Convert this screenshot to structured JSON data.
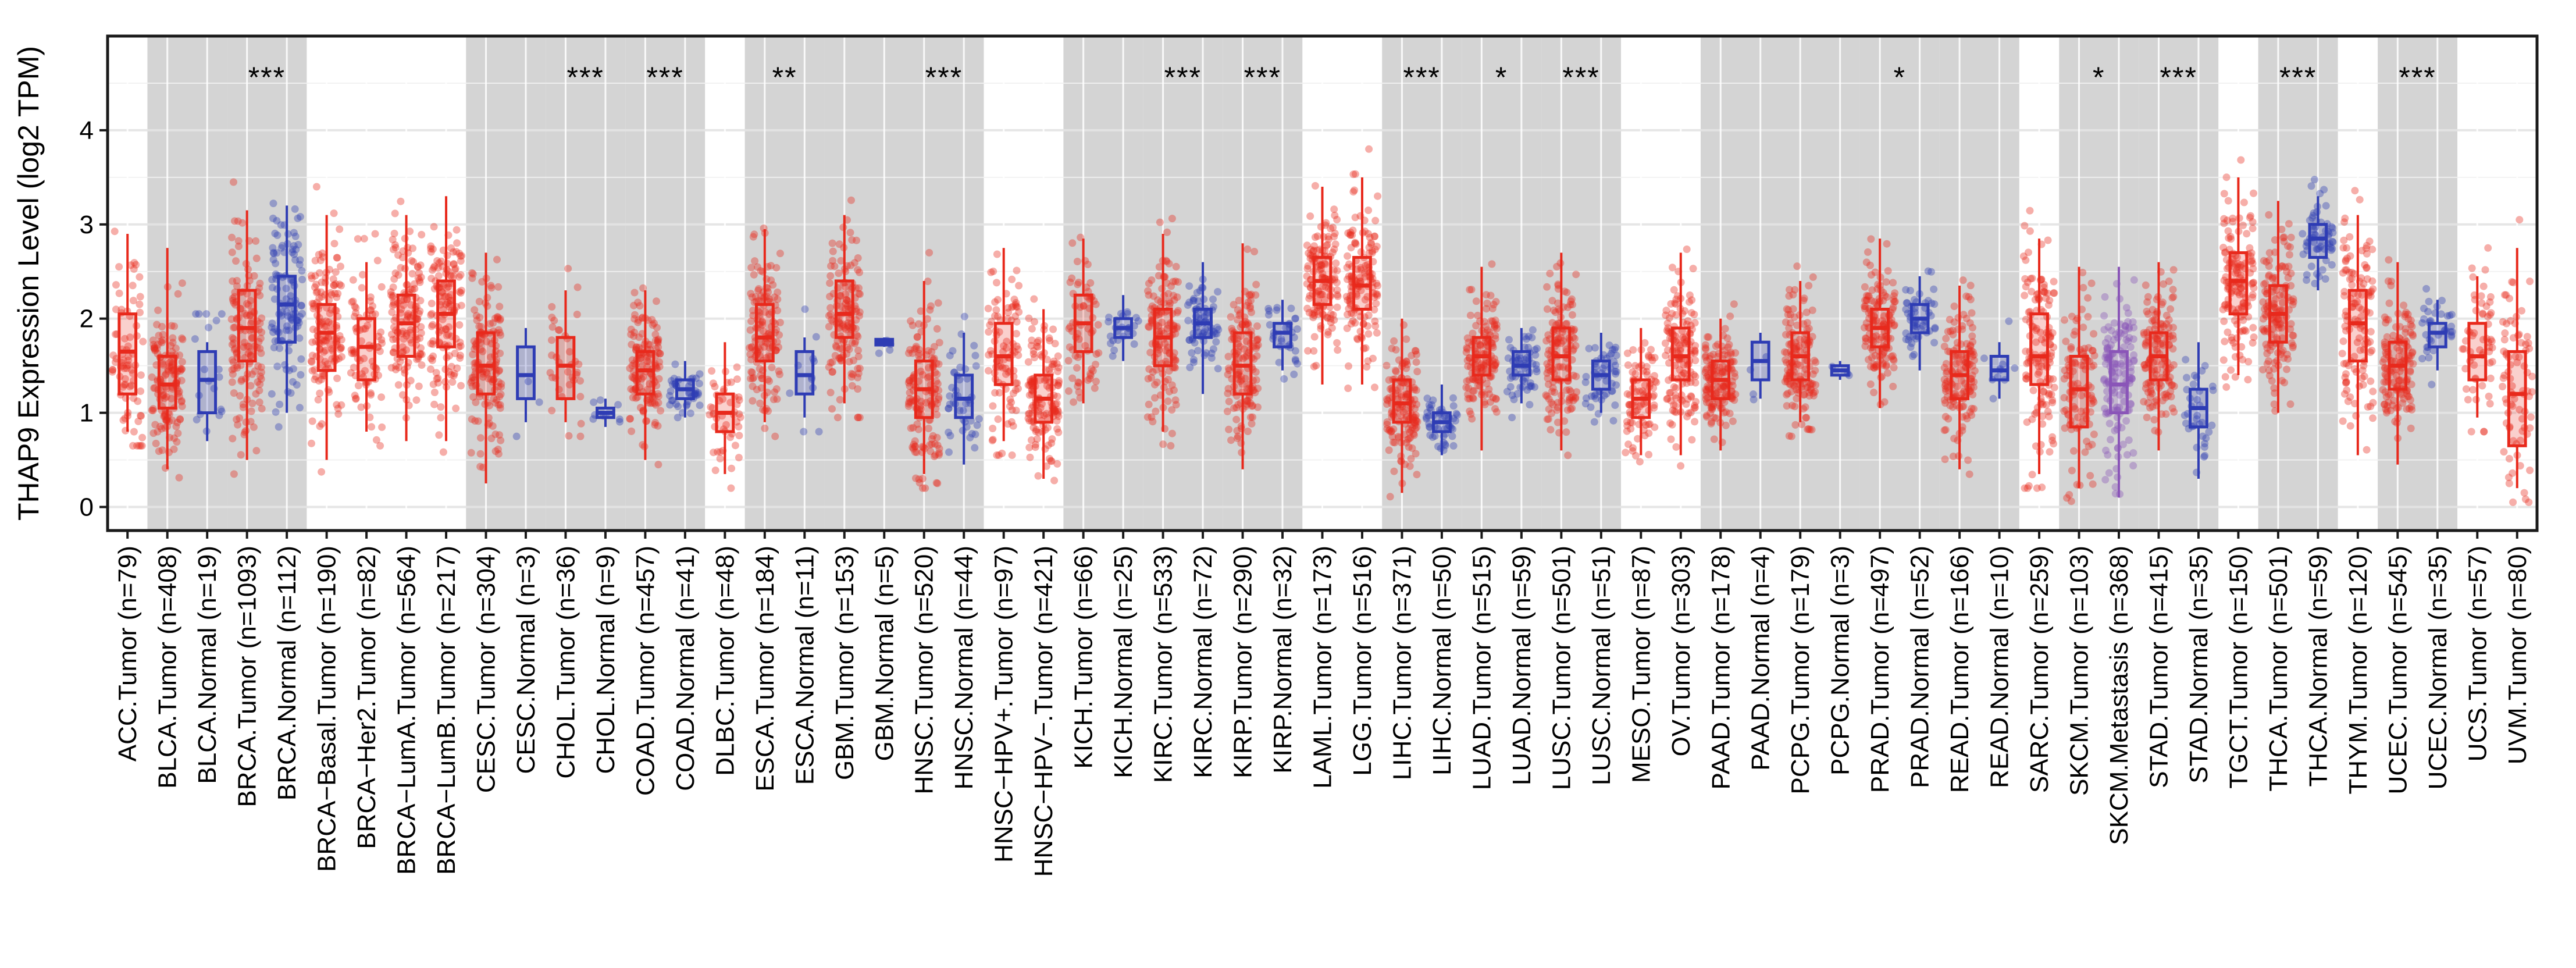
{
  "colors": {
    "tumor": "#e8291c",
    "normal": "#2e3cb4",
    "metastasis": "#8a55b8",
    "band": "#d4d4d4",
    "gridline": "#ebebeb"
  },
  "chart_data": {
    "type": "box",
    "xlabel": "",
    "ylabel": "THAP9 Expression Level (log2 TPM)",
    "ylim": [
      -0.25,
      5.0
    ],
    "yticks": [
      "0",
      "1",
      "2",
      "3",
      "4"
    ],
    "grid": true,
    "legend": "none",
    "shaded_pairs": [
      "BLCA",
      "BRCA",
      "CESC",
      "CHOL",
      "COAD",
      "ESCA",
      "GBM",
      "HNSC",
      "KICH",
      "KIRC",
      "KIRP",
      "LIHC",
      "LUAD",
      "LUSC",
      "PAAD",
      "PCPG",
      "PRAD",
      "READ",
      "SKCM",
      "STAD",
      "THCA",
      "UCEC"
    ],
    "significance": [
      {
        "group": "BRCA",
        "label": "***"
      },
      {
        "group": "CHOL",
        "label": "***"
      },
      {
        "group": "COAD",
        "label": "***"
      },
      {
        "group": "ESCA",
        "label": "**"
      },
      {
        "group": "HNSC",
        "label": "***"
      },
      {
        "group": "KIRC",
        "label": "***"
      },
      {
        "group": "KIRP",
        "label": "***"
      },
      {
        "group": "LIHC",
        "label": "***"
      },
      {
        "group": "LUAD",
        "label": "*"
      },
      {
        "group": "LUSC",
        "label": "***"
      },
      {
        "group": "PRAD",
        "label": "*"
      },
      {
        "group": "SKCM",
        "label": "*"
      },
      {
        "group": "STAD",
        "label": "***"
      },
      {
        "group": "THCA",
        "label": "***"
      },
      {
        "group": "UCEC",
        "label": "***"
      }
    ],
    "series": [
      {
        "label": "ACC.Tumor (n=79)",
        "type": "tumor",
        "group": "ACC",
        "min": 0.8,
        "q1": 1.2,
        "median": 1.65,
        "q3": 2.05,
        "max": 2.9
      },
      {
        "label": "BLCA.Tumor (n=408)",
        "type": "tumor",
        "group": "BLCA",
        "min": 0.4,
        "q1": 1.05,
        "median": 1.3,
        "q3": 1.6,
        "max": 2.75
      },
      {
        "label": "BLCA.Normal (n=19)",
        "type": "normal",
        "group": "BLCA",
        "min": 0.7,
        "q1": 1.0,
        "median": 1.35,
        "q3": 1.65,
        "max": 1.75
      },
      {
        "label": "BRCA.Tumor (n=1093)",
        "type": "tumor",
        "group": "BRCA",
        "min": 0.5,
        "q1": 1.55,
        "median": 1.9,
        "q3": 2.3,
        "max": 3.15
      },
      {
        "label": "BRCA.Normal (n=112)",
        "type": "normal",
        "group": "BRCA",
        "min": 1.0,
        "q1": 1.75,
        "median": 2.15,
        "q3": 2.45,
        "max": 3.2
      },
      {
        "label": "BRCA−Basal.Tumor (n=190)",
        "type": "tumor",
        "group": "BRCA−Basal",
        "min": 0.5,
        "q1": 1.45,
        "median": 1.85,
        "q3": 2.15,
        "max": 3.1
      },
      {
        "label": "BRCA−Her2.Tumor (n=82)",
        "type": "tumor",
        "group": "BRCA−Her2",
        "min": 0.8,
        "q1": 1.35,
        "median": 1.7,
        "q3": 2.0,
        "max": 2.6
      },
      {
        "label": "BRCA−LumA.Tumor (n=564)",
        "type": "tumor",
        "group": "BRCA−LumA",
        "min": 0.7,
        "q1": 1.6,
        "median": 1.95,
        "q3": 2.25,
        "max": 3.1
      },
      {
        "label": "BRCA−LumB.Tumor (n=217)",
        "type": "tumor",
        "group": "BRCA−LumB",
        "min": 0.7,
        "q1": 1.7,
        "median": 2.05,
        "q3": 2.4,
        "max": 3.3
      },
      {
        "label": "CESC.Tumor (n=304)",
        "type": "tumor",
        "group": "CESC",
        "min": 0.25,
        "q1": 1.2,
        "median": 1.5,
        "q3": 1.85,
        "max": 2.7
      },
      {
        "label": "CESC.Normal (n=3)",
        "type": "normal",
        "group": "CESC",
        "min": 0.9,
        "q1": 1.15,
        "median": 1.4,
        "q3": 1.7,
        "max": 1.9
      },
      {
        "label": "CHOL.Tumor (n=36)",
        "type": "tumor",
        "group": "CHOL",
        "min": 0.9,
        "q1": 1.15,
        "median": 1.5,
        "q3": 1.8,
        "max": 2.3
      },
      {
        "label": "CHOL.Normal (n=9)",
        "type": "normal",
        "group": "CHOL",
        "min": 0.85,
        "q1": 0.95,
        "median": 1.0,
        "q3": 1.05,
        "max": 1.15
      },
      {
        "label": "COAD.Tumor (n=457)",
        "type": "tumor",
        "group": "COAD",
        "min": 0.5,
        "q1": 1.2,
        "median": 1.45,
        "q3": 1.65,
        "max": 2.3
      },
      {
        "label": "COAD.Normal (n=41)",
        "type": "normal",
        "group": "COAD",
        "min": 0.95,
        "q1": 1.15,
        "median": 1.25,
        "q3": 1.35,
        "max": 1.55
      },
      {
        "label": "DLBC.Tumor (n=48)",
        "type": "tumor",
        "group": "DLBC",
        "min": 0.35,
        "q1": 0.8,
        "median": 1.0,
        "q3": 1.2,
        "max": 1.75
      },
      {
        "label": "ESCA.Tumor (n=184)",
        "type": "tumor",
        "group": "ESCA",
        "min": 0.9,
        "q1": 1.55,
        "median": 1.8,
        "q3": 2.15,
        "max": 2.95
      },
      {
        "label": "ESCA.Normal (n=11)",
        "type": "normal",
        "group": "ESCA",
        "min": 0.95,
        "q1": 1.2,
        "median": 1.4,
        "q3": 1.65,
        "max": 1.8
      },
      {
        "label": "GBM.Tumor (n=153)",
        "type": "tumor",
        "group": "GBM",
        "min": 1.1,
        "q1": 1.8,
        "median": 2.05,
        "q3": 2.4,
        "max": 3.1
      },
      {
        "label": "GBM.Normal (n=5)",
        "type": "normal",
        "group": "GBM",
        "min": 1.7,
        "q1": 1.72,
        "median": 1.75,
        "q3": 1.78,
        "max": 1.8
      },
      {
        "label": "HNSC.Tumor (n=520)",
        "type": "tumor",
        "group": "HNSC",
        "min": 0.35,
        "q1": 0.95,
        "median": 1.25,
        "q3": 1.55,
        "max": 2.4
      },
      {
        "label": "HNSC.Normal (n=44)",
        "type": "normal",
        "group": "HNSC",
        "min": 0.45,
        "q1": 0.95,
        "median": 1.15,
        "q3": 1.4,
        "max": 1.85
      },
      {
        "label": "HNSC−HPV+.Tumor (n=97)",
        "type": "tumor",
        "group": "HNSC",
        "min": 0.7,
        "q1": 1.3,
        "median": 1.6,
        "q3": 1.95,
        "max": 2.75
      },
      {
        "label": "HNSC−HPV−.Tumor (n=421)",
        "type": "tumor",
        "group": "HNSC",
        "min": 0.3,
        "q1": 0.9,
        "median": 1.15,
        "q3": 1.4,
        "max": 2.1
      },
      {
        "label": "KICH.Tumor (n=66)",
        "type": "tumor",
        "group": "KICH",
        "min": 1.1,
        "q1": 1.65,
        "median": 1.95,
        "q3": 2.25,
        "max": 2.85
      },
      {
        "label": "KICH.Normal (n=25)",
        "type": "normal",
        "group": "KICH",
        "min": 1.55,
        "q1": 1.8,
        "median": 1.9,
        "q3": 2.0,
        "max": 2.25
      },
      {
        "label": "KIRC.Tumor (n=533)",
        "type": "tumor",
        "group": "KIRC",
        "min": 0.8,
        "q1": 1.5,
        "median": 1.8,
        "q3": 2.1,
        "max": 2.9
      },
      {
        "label": "KIRC.Normal (n=72)",
        "type": "normal",
        "group": "KIRC",
        "min": 1.2,
        "q1": 1.8,
        "median": 1.95,
        "q3": 2.1,
        "max": 2.6
      },
      {
        "label": "KIRP.Tumor (n=290)",
        "type": "tumor",
        "group": "KIRP",
        "min": 0.4,
        "q1": 1.2,
        "median": 1.5,
        "q3": 1.85,
        "max": 2.8
      },
      {
        "label": "KIRP.Normal (n=32)",
        "type": "normal",
        "group": "KIRP",
        "min": 1.45,
        "q1": 1.7,
        "median": 1.85,
        "q3": 1.95,
        "max": 2.2
      },
      {
        "label": "LAML.Tumor (n=173)",
        "type": "tumor",
        "group": "LAML",
        "min": 1.3,
        "q1": 2.15,
        "median": 2.4,
        "q3": 2.65,
        "max": 3.4
      },
      {
        "label": "LGG.Tumor (n=516)",
        "type": "tumor",
        "group": "LGG",
        "min": 1.3,
        "q1": 2.1,
        "median": 2.35,
        "q3": 2.65,
        "max": 3.5
      },
      {
        "label": "LIHC.Tumor (n=371)",
        "type": "tumor",
        "group": "LIHC",
        "min": 0.15,
        "q1": 0.9,
        "median": 1.1,
        "q3": 1.35,
        "max": 2.0
      },
      {
        "label": "LIHC.Normal (n=50)",
        "type": "normal",
        "group": "LIHC",
        "min": 0.55,
        "q1": 0.8,
        "median": 0.9,
        "q3": 1.0,
        "max": 1.3
      },
      {
        "label": "LUAD.Tumor (n=515)",
        "type": "tumor",
        "group": "LUAD",
        "min": 0.6,
        "q1": 1.4,
        "median": 1.6,
        "q3": 1.8,
        "max": 2.55
      },
      {
        "label": "LUAD.Normal (n=59)",
        "type": "normal",
        "group": "LUAD",
        "min": 1.1,
        "q1": 1.4,
        "median": 1.5,
        "q3": 1.65,
        "max": 1.9
      },
      {
        "label": "LUSC.Tumor (n=501)",
        "type": "tumor",
        "group": "LUSC",
        "min": 0.6,
        "q1": 1.35,
        "median": 1.6,
        "q3": 1.9,
        "max": 2.7
      },
      {
        "label": "LUSC.Normal (n=51)",
        "type": "normal",
        "group": "LUSC",
        "min": 1.0,
        "q1": 1.25,
        "median": 1.4,
        "q3": 1.55,
        "max": 1.85
      },
      {
        "label": "MESO.Tumor (n=87)",
        "type": "tumor",
        "group": "MESO",
        "min": 0.55,
        "q1": 0.95,
        "median": 1.15,
        "q3": 1.35,
        "max": 1.9
      },
      {
        "label": "OV.Tumor (n=303)",
        "type": "tumor",
        "group": "OV",
        "min": 0.55,
        "q1": 1.35,
        "median": 1.6,
        "q3": 1.9,
        "max": 2.7
      },
      {
        "label": "PAAD.Tumor (n=178)",
        "type": "tumor",
        "group": "PAAD",
        "min": 0.6,
        "q1": 1.15,
        "median": 1.35,
        "q3": 1.55,
        "max": 2.0
      },
      {
        "label": "PAAD.Normal (n=4)",
        "type": "normal",
        "group": "PAAD",
        "min": 1.15,
        "q1": 1.35,
        "median": 1.55,
        "q3": 1.75,
        "max": 1.85
      },
      {
        "label": "PCPG.Tumor (n=179)",
        "type": "tumor",
        "group": "PCPG",
        "min": 0.9,
        "q1": 1.35,
        "median": 1.6,
        "q3": 1.85,
        "max": 2.4
      },
      {
        "label": "PCPG.Normal (n=3)",
        "type": "normal",
        "group": "PCPG",
        "min": 1.35,
        "q1": 1.4,
        "median": 1.45,
        "q3": 1.5,
        "max": 1.55
      },
      {
        "label": "PRAD.Tumor (n=497)",
        "type": "tumor",
        "group": "PRAD",
        "min": 1.05,
        "q1": 1.7,
        "median": 1.9,
        "q3": 2.1,
        "max": 2.85
      },
      {
        "label": "PRAD.Normal (n=52)",
        "type": "normal",
        "group": "PRAD",
        "min": 1.45,
        "q1": 1.85,
        "median": 2.0,
        "q3": 2.15,
        "max": 2.45
      },
      {
        "label": "READ.Tumor (n=166)",
        "type": "tumor",
        "group": "READ",
        "min": 0.4,
        "q1": 1.15,
        "median": 1.4,
        "q3": 1.65,
        "max": 2.35
      },
      {
        "label": "READ.Normal (n=10)",
        "type": "normal",
        "group": "READ",
        "min": 1.15,
        "q1": 1.35,
        "median": 1.45,
        "q3": 1.6,
        "max": 1.75
      },
      {
        "label": "SARC.Tumor (n=259)",
        "type": "tumor",
        "group": "SARC",
        "min": 0.35,
        "q1": 1.3,
        "median": 1.6,
        "q3": 2.05,
        "max": 2.85
      },
      {
        "label": "SKCM.Tumor (n=103)",
        "type": "tumor",
        "group": "SKCM",
        "min": 0.2,
        "q1": 0.85,
        "median": 1.25,
        "q3": 1.6,
        "max": 2.55
      },
      {
        "label": "SKCM.Metastasis (n=368)",
        "type": "metastasis",
        "group": "SKCM",
        "min": 0.1,
        "q1": 1.0,
        "median": 1.3,
        "q3": 1.65,
        "max": 2.55
      },
      {
        "label": "STAD.Tumor (n=415)",
        "type": "tumor",
        "group": "STAD",
        "min": 0.6,
        "q1": 1.35,
        "median": 1.6,
        "q3": 1.85,
        "max": 2.6
      },
      {
        "label": "STAD.Normal (n=35)",
        "type": "normal",
        "group": "STAD",
        "min": 0.3,
        "q1": 0.85,
        "median": 1.05,
        "q3": 1.25,
        "max": 1.75
      },
      {
        "label": "TGCT.Tumor (n=150)",
        "type": "tumor",
        "group": "TGCT",
        "min": 1.4,
        "q1": 2.05,
        "median": 2.4,
        "q3": 2.7,
        "max": 3.5
      },
      {
        "label": "THCA.Tumor (n=501)",
        "type": "tumor",
        "group": "THCA",
        "min": 1.0,
        "q1": 1.75,
        "median": 2.05,
        "q3": 2.35,
        "max": 3.25
      },
      {
        "label": "THCA.Normal (n=59)",
        "type": "normal",
        "group": "THCA",
        "min": 2.3,
        "q1": 2.65,
        "median": 2.85,
        "q3": 3.0,
        "max": 3.3
      },
      {
        "label": "THYM.Tumor (n=120)",
        "type": "tumor",
        "group": "THYM",
        "min": 0.55,
        "q1": 1.55,
        "median": 1.95,
        "q3": 2.3,
        "max": 3.1
      },
      {
        "label": "UCEC.Tumor (n=545)",
        "type": "tumor",
        "group": "UCEC",
        "min": 0.45,
        "q1": 1.25,
        "median": 1.5,
        "q3": 1.75,
        "max": 2.6
      },
      {
        "label": "UCEC.Normal (n=35)",
        "type": "normal",
        "group": "UCEC",
        "min": 1.45,
        "q1": 1.7,
        "median": 1.85,
        "q3": 1.95,
        "max": 2.2
      },
      {
        "label": "UCS.Tumor (n=57)",
        "type": "tumor",
        "group": "UCS",
        "min": 0.95,
        "q1": 1.35,
        "median": 1.6,
        "q3": 1.95,
        "max": 2.45
      },
      {
        "label": "UVM.Tumor (n=80)",
        "type": "tumor",
        "group": "UVM",
        "min": 0.2,
        "q1": 0.65,
        "median": 1.2,
        "q3": 1.65,
        "max": 2.75
      }
    ]
  }
}
